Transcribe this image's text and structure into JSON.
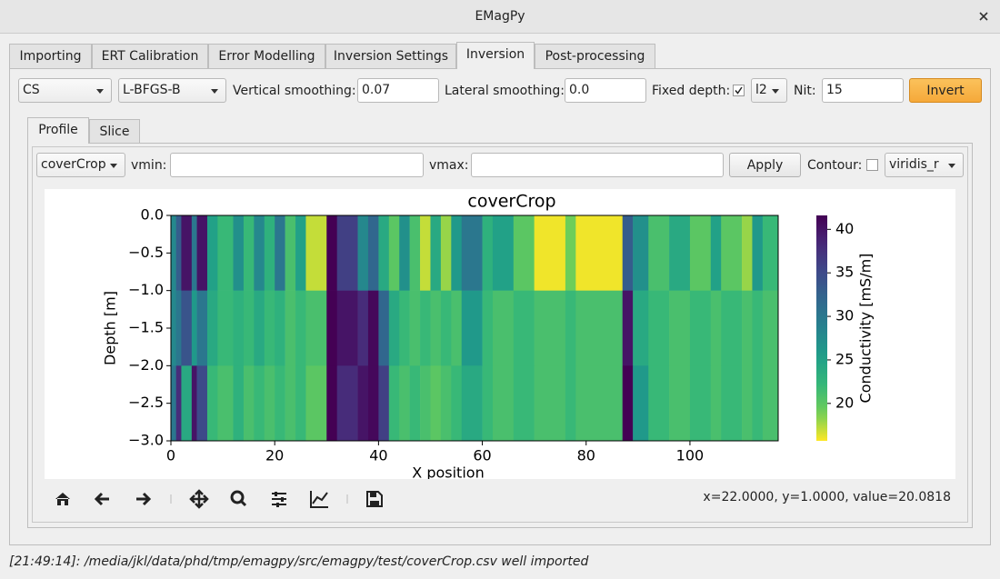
{
  "window": {
    "title": "EMagPy"
  },
  "tabs": [
    "Importing",
    "ERT Calibration",
    "Error Modelling",
    "Inversion Settings",
    "Inversion",
    "Post-processing"
  ],
  "inversion": {
    "model": "CS",
    "method": "L-BFGS-B",
    "vertical_smoothing_label": "Vertical smoothing:",
    "vertical_smoothing": "0.07",
    "lateral_smoothing_label": "Lateral smoothing:",
    "lateral_smoothing": "0.0",
    "fixed_depth_label": "Fixed depth:",
    "norm": "l2",
    "nit_label": "Nit:",
    "nit": "15",
    "invert_button": "Invert"
  },
  "profile_tabs": [
    "Profile",
    "Slice"
  ],
  "profile": {
    "survey": "coverCrop",
    "vmin_label": "vmin:",
    "vmax_label": "vmax:",
    "apply_button": "Apply",
    "contour_label": "Contour:",
    "colormap_combo": "viridis_r"
  },
  "chart_data": {
    "type": "heatmap",
    "title": "coverCrop",
    "xlabel": "X position",
    "ylabel": "Depth [m]",
    "colorbar_label": "Conductivity [mS/m]",
    "colormap": "viridis_r",
    "x_edges": [
      0,
      1,
      2,
      4,
      5,
      7,
      9,
      12,
      14,
      16,
      18,
      20,
      22,
      24,
      26,
      30,
      32,
      36,
      38,
      40,
      42,
      44,
      46,
      48,
      50,
      52,
      54,
      56,
      60,
      62,
      66,
      70,
      76,
      78,
      87,
      89,
      92,
      96,
      100,
      104,
      106,
      110,
      112,
      114,
      117
    ],
    "y_edges": [
      0,
      -1,
      -2,
      -3
    ],
    "values": [
      [
        28,
        33,
        40,
        30,
        40,
        25,
        22,
        27,
        22,
        28,
        23,
        30,
        21,
        25,
        17,
        42,
        36,
        28,
        32,
        24,
        20,
        27,
        21,
        17,
        24,
        18,
        26,
        30,
        23,
        25,
        20,
        16,
        19,
        16,
        33,
        27,
        21,
        24,
        20,
        25,
        20,
        18,
        26,
        22
      ],
      [
        28,
        30,
        34,
        26,
        30,
        24,
        22,
        23,
        22,
        24,
        22,
        23,
        21,
        22,
        21,
        42,
        40,
        38,
        41,
        32,
        24,
        22,
        21,
        22,
        21,
        22,
        21,
        26,
        22,
        21,
        22,
        21,
        22,
        21,
        40,
        24,
        22,
        21,
        22,
        21,
        22,
        21,
        22,
        21
      ],
      [
        30,
        38,
        24,
        40,
        35,
        22,
        21,
        23,
        21,
        22,
        21,
        22,
        21,
        22,
        20,
        42,
        38,
        40,
        41,
        36,
        22,
        21,
        22,
        21,
        20,
        21,
        22,
        24,
        22,
        21,
        22,
        21,
        22,
        21,
        42,
        26,
        22,
        21,
        22,
        21,
        22,
        21,
        22,
        21
      ]
    ],
    "xlim": [
      0,
      117
    ],
    "ylim": [
      -3,
      0
    ],
    "xticks": [
      0,
      20,
      40,
      60,
      80,
      100
    ],
    "yticks": [
      {
        "value": 0,
        "label": "0.0"
      },
      {
        "value": -0.5,
        "label": "−0.5"
      },
      {
        "value": -1,
        "label": "−1.0"
      },
      {
        "value": -1.5,
        "label": "−1.5"
      },
      {
        "value": -2,
        "label": "−2.0"
      },
      {
        "value": -2.5,
        "label": "−2.5"
      },
      {
        "value": -3,
        "label": "−3.0"
      }
    ],
    "clim": [
      15.7,
      41.6
    ],
    "cticks": [
      20,
      25,
      30,
      35,
      40
    ]
  },
  "toolbar": {
    "coordinates": "x=22.0000, y=1.0000, value=20.0818"
  },
  "status_bar": "[21:49:14]: /media/jkl/data/phd/tmp/emagpy/src/emagpy/test/coverCrop.csv well imported"
}
